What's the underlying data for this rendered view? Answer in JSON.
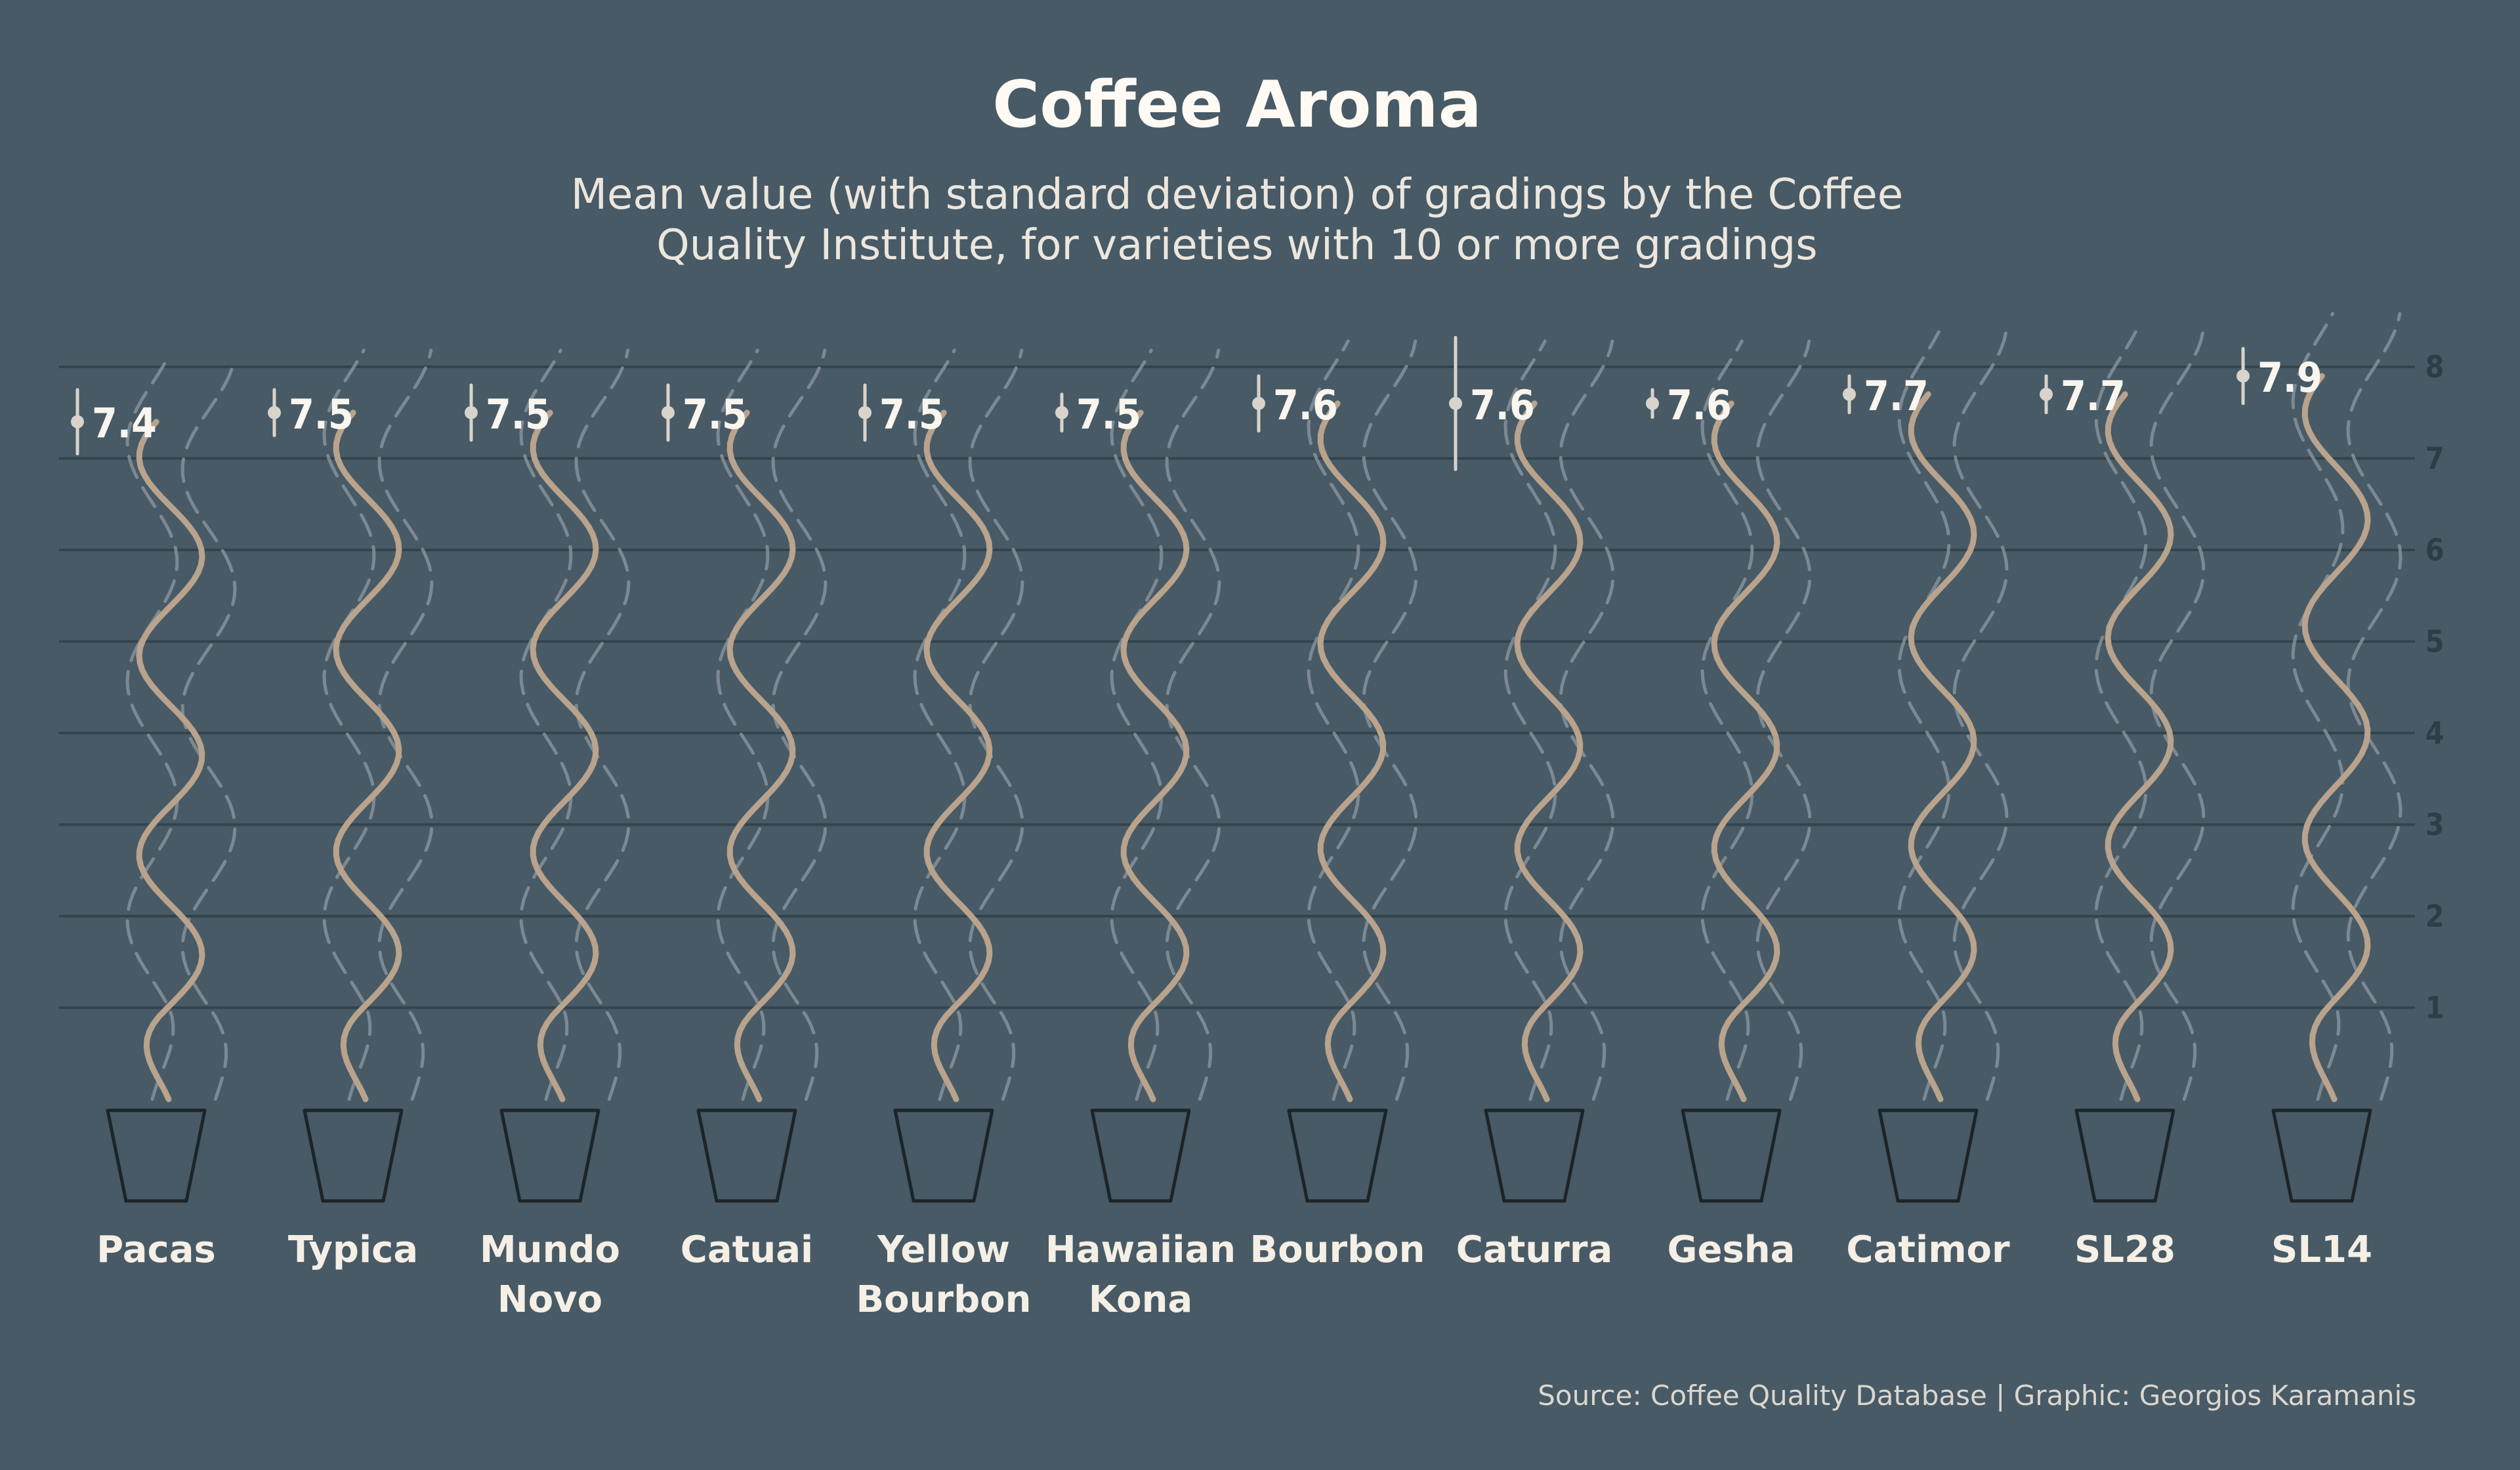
{
  "chart_data": {
    "type": "line",
    "title": "Coffee Aroma",
    "subtitle": [
      "Mean value (with standard deviation) of gradings by the Coffee",
      "Quality Institute, for varieties with 10 or more gradings"
    ],
    "caption": "Source: Coffee Quality Database | Graphic: Georgios Karamanis",
    "ylim": [
      0,
      8
    ],
    "y_ticks": [
      "1",
      "2",
      "3",
      "4",
      "5",
      "6",
      "7",
      "8"
    ],
    "grid": true,
    "categories": [
      [
        "Pacas"
      ],
      [
        "Typica"
      ],
      [
        "Mundo",
        "Novo"
      ],
      [
        "Catuai"
      ],
      [
        "Yellow",
        "Bourbon"
      ],
      [
        "Hawaiian",
        "Kona"
      ],
      [
        "Bourbon"
      ],
      [
        "Caturra"
      ],
      [
        "Gesha"
      ],
      [
        "Catimor"
      ],
      [
        "SL28"
      ],
      [
        "SL14"
      ]
    ],
    "means": [
      7.4,
      7.5,
      7.5,
      7.5,
      7.5,
      7.5,
      7.6,
      7.6,
      7.6,
      7.7,
      7.7,
      7.9
    ],
    "labels": [
      "7.4",
      "7.5",
      "7.5",
      "7.5",
      "7.5",
      "7.5",
      "7.6",
      "7.6",
      "7.6",
      "7.7",
      "7.7",
      "7.9"
    ],
    "sd": [
      0.35,
      0.25,
      0.3,
      0.3,
      0.3,
      0.2,
      0.3,
      0.72,
      0.15,
      0.2,
      0.2,
      0.3
    ]
  },
  "colors": {
    "background": "#475a66",
    "steam": "#b9a38c",
    "steam_dashed": "#8e9aa1",
    "grid": "#34444d",
    "cup_stroke": "#1d2428",
    "point": "#d8d3cb"
  }
}
